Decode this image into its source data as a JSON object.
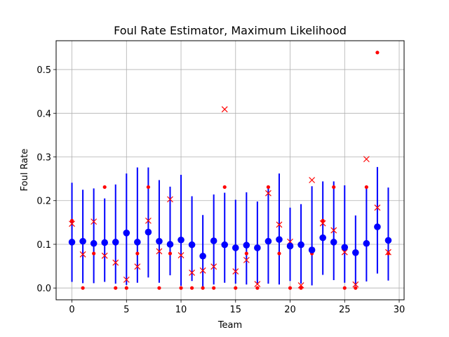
{
  "chart_data": {
    "type": "scatter",
    "title": "Foul Rate Estimator, Maximum Likelihood",
    "xlabel": "Team",
    "ylabel": "Foul Rate",
    "xlim": [
      -1.45,
      30.45
    ],
    "ylim": [
      -0.027,
      0.566
    ],
    "xticks": [
      0,
      5,
      10,
      15,
      20,
      25,
      30
    ],
    "yticks": [
      0.0,
      0.1,
      0.2,
      0.3,
      0.4,
      0.5
    ],
    "xtick_labels": [
      "0",
      "5",
      "10",
      "15",
      "20",
      "25",
      "30"
    ],
    "ytick_labels": [
      "0.0",
      "0.1",
      "0.2",
      "0.3",
      "0.4",
      "0.5"
    ],
    "grid": true,
    "colors": {
      "interval": "#0000ff",
      "estimate": "#0000ff",
      "dot": "#ff0000",
      "cross": "#ff0000"
    },
    "series": [
      {
        "marker": "blue-dot-with-errorbar",
        "x": [
          0,
          1,
          2,
          3,
          4,
          5,
          6,
          7,
          8,
          9,
          10,
          11,
          12,
          13,
          14,
          15,
          16,
          17,
          18,
          19,
          20,
          21,
          22,
          23,
          24,
          25,
          26,
          27,
          28,
          29
        ],
        "y": [
          0.105,
          0.107,
          0.102,
          0.104,
          0.105,
          0.126,
          0.105,
          0.128,
          0.107,
          0.1,
          0.11,
          0.099,
          0.073,
          0.108,
          0.099,
          0.092,
          0.098,
          0.092,
          0.107,
          0.111,
          0.096,
          0.099,
          0.087,
          0.115,
          0.105,
          0.093,
          0.081,
          0.102,
          0.14,
          0.109
        ],
        "lower": [
          0.014,
          0.011,
          0.011,
          0.014,
          0.01,
          0.007,
          0.012,
          0.024,
          0.012,
          0.029,
          0.005,
          0.016,
          0.003,
          0.008,
          0.012,
          0.01,
          0.008,
          0.01,
          0.01,
          0.008,
          0.016,
          0.01,
          0.006,
          0.03,
          0.018,
          0.012,
          0.005,
          0.015,
          0.033,
          0.017
        ],
        "upper": [
          0.241,
          0.225,
          0.228,
          0.205,
          0.237,
          0.262,
          0.276,
          0.276,
          0.247,
          0.232,
          0.259,
          0.21,
          0.167,
          0.214,
          0.218,
          0.202,
          0.219,
          0.198,
          0.23,
          0.262,
          0.184,
          0.192,
          0.233,
          0.244,
          0.244,
          0.235,
          0.166,
          0.234,
          0.277,
          0.23
        ]
      },
      {
        "marker": "red-dot",
        "x": [
          0,
          1,
          2,
          3,
          4,
          5,
          6,
          7,
          8,
          9,
          10,
          11,
          12,
          13,
          14,
          15,
          16,
          17,
          18,
          19,
          20,
          21,
          22,
          23,
          24,
          25,
          26,
          27,
          28,
          29
        ],
        "y": [
          0.154,
          0.0,
          0.079,
          0.231,
          0.0,
          0.0,
          0.079,
          0.231,
          0.0,
          0.079,
          0.0,
          0.0,
          0.0,
          0.0,
          0.231,
          0.0,
          0.079,
          0.0,
          0.231,
          0.079,
          0.0,
          0.0,
          0.079,
          0.154,
          0.231,
          0.0,
          0.0,
          0.231,
          0.539,
          0.079
        ]
      },
      {
        "marker": "red-x",
        "x": [
          0,
          1,
          2,
          3,
          4,
          5,
          6,
          7,
          8,
          9,
          10,
          11,
          12,
          13,
          14,
          15,
          16,
          17,
          18,
          19,
          20,
          21,
          22,
          23,
          24,
          25,
          26,
          27,
          28,
          29
        ],
        "y": [
          0.147,
          0.077,
          0.152,
          0.074,
          0.058,
          0.019,
          0.049,
          0.154,
          0.084,
          0.203,
          0.075,
          0.035,
          0.04,
          0.049,
          0.409,
          0.038,
          0.064,
          0.009,
          0.217,
          0.145,
          0.106,
          0.006,
          0.247,
          0.148,
          0.132,
          0.082,
          0.008,
          0.295,
          0.184,
          0.082
        ]
      }
    ]
  }
}
